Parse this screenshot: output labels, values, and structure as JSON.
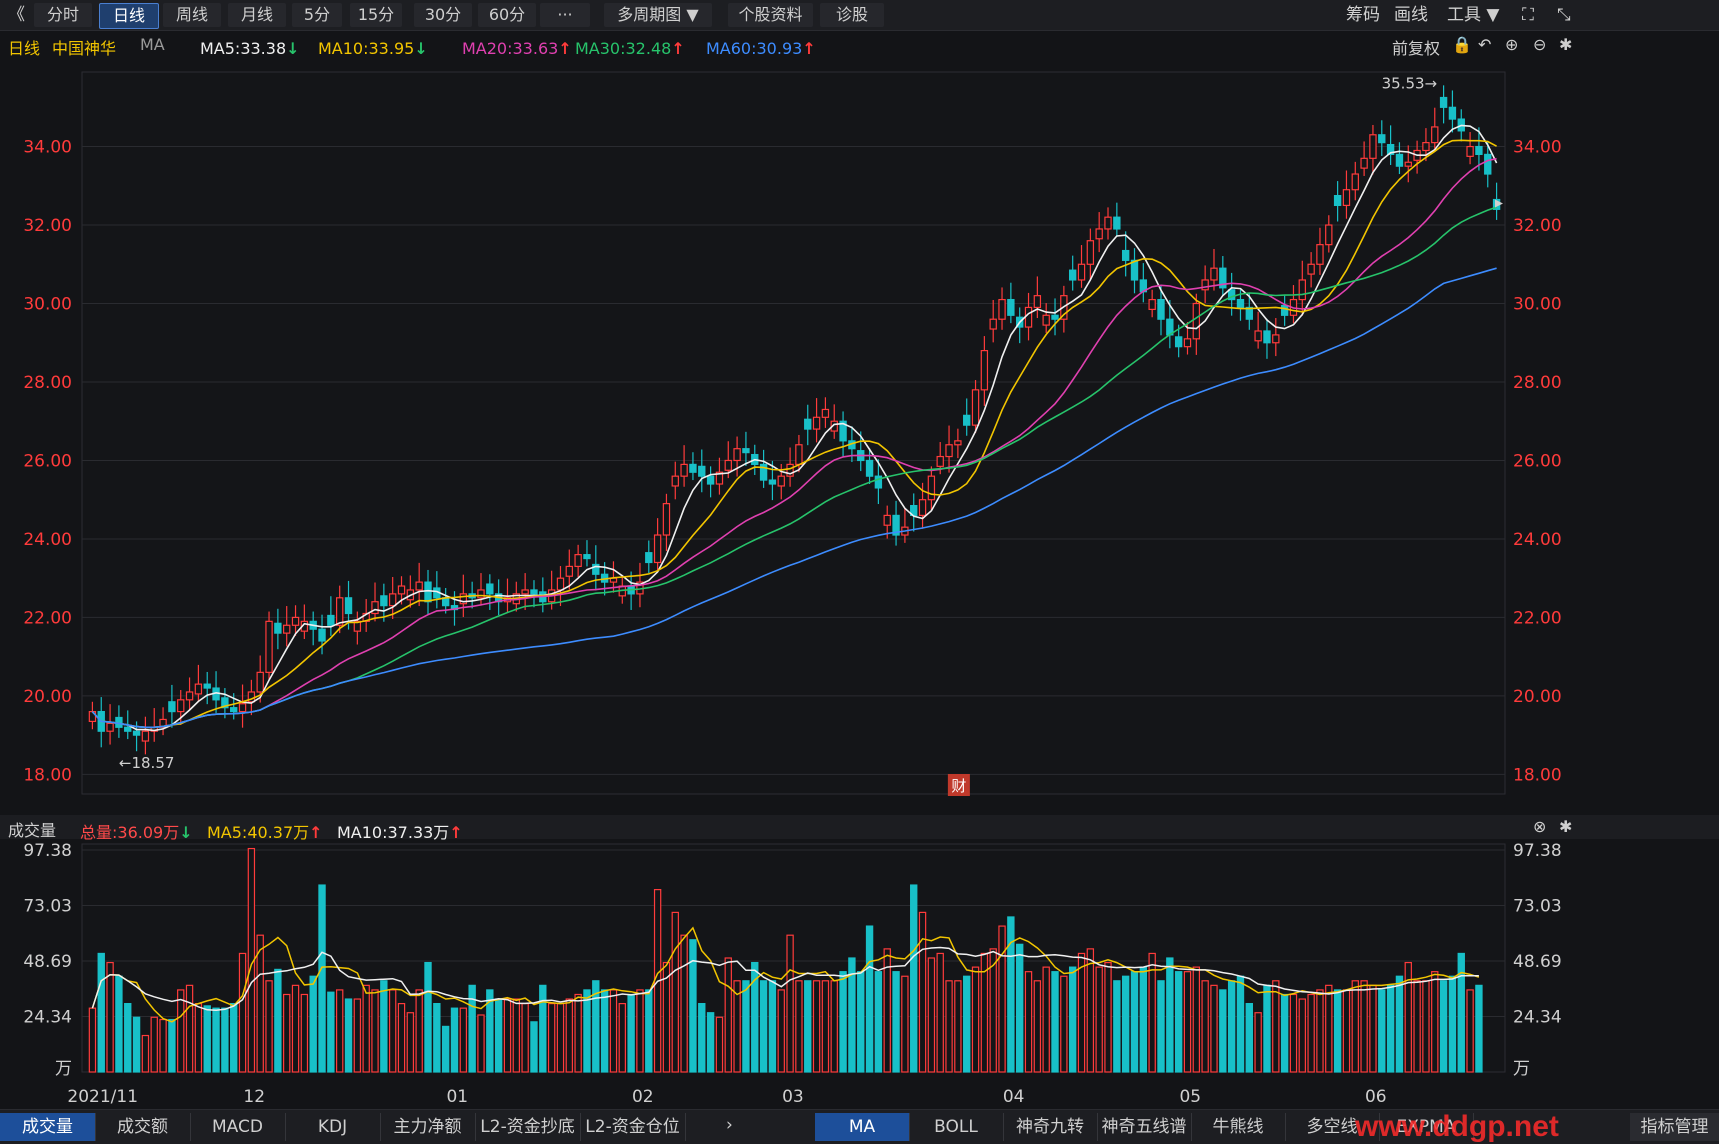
{
  "toolbar": {
    "back": "《",
    "tabs": [
      "分时",
      "日线",
      "周线",
      "月线",
      "5分",
      "15分",
      "30分",
      "60分",
      "···",
      "多周期图 ▼",
      "个股资料",
      "诊股"
    ],
    "right": [
      "筹码",
      "画线",
      "工具 ▼"
    ]
  },
  "ma_bar": {
    "period": "日线",
    "stock": "中国神华",
    "indicator": "MA",
    "items": [
      {
        "label": "MA5:33.38",
        "arrow": "↓",
        "color": "#f0f0f0"
      },
      {
        "label": "MA10:33.95",
        "arrow": "↓",
        "color": "#f2c500"
      },
      {
        "label": "MA20:33.63",
        "arrow": "↑",
        "color": "#e040b0"
      },
      {
        "label": "MA30:32.48",
        "arrow": "↑",
        "color": "#27c36b"
      },
      {
        "label": "MA60:30.93",
        "arrow": "↑",
        "color": "#3d8cff"
      }
    ],
    "fq": "前复权"
  },
  "volume_bar": {
    "title": "成交量",
    "items": [
      {
        "label": "总量:36.09万",
        "arrow": "↓",
        "color": "#ff4a4a"
      },
      {
        "label": "MA5:40.37万",
        "arrow": "↑",
        "color": "#f2c500"
      },
      {
        "label": "MA10:37.33万",
        "arrow": "↑",
        "color": "#f0f0f0"
      }
    ]
  },
  "bottom_tabs_left": [
    "成交量",
    "成交额",
    "MACD",
    "KDJ",
    "主力净额",
    "L2-资金抄底",
    "L2-资金仓位"
  ],
  "bottom_tabs_right": [
    "MA",
    "BOLL",
    "神奇九转",
    "神奇五线谱",
    "牛熊线",
    "多空线",
    "EXPMA"
  ],
  "bottom_right_label": "指标管理",
  "watermark": "www.ddgp.net",
  "caibao": "财",
  "colors": {
    "up": "#ff3b3b",
    "down": "#18c0c8",
    "grid": "#2a2b30",
    "axis": "#ff3b3b"
  },
  "chart_data": {
    "type": "candlestick",
    "y_ticks": [
      "34.00",
      "32.00",
      "30.00",
      "28.00",
      "26.00",
      "24.00",
      "22.00",
      "20.00",
      "18.00"
    ],
    "ylim": [
      17.5,
      35.9
    ],
    "x_labels": [
      {
        "label": "2021/11",
        "index": 0
      },
      {
        "label": "12",
        "index": 18
      },
      {
        "label": "01",
        "index": 41
      },
      {
        "label": "02",
        "index": 62
      },
      {
        "label": "03",
        "index": 79
      },
      {
        "label": "04",
        "index": 104
      },
      {
        "label": "05",
        "index": 124
      },
      {
        "label": "06",
        "index": 145
      }
    ],
    "max_label": "35.53→",
    "min_label": "←18.57",
    "high": 35.53,
    "low": 18.57,
    "vol_ticks": [
      "97.38",
      "73.03",
      "48.69",
      "24.34",
      "万"
    ],
    "vol_max": 100,
    "closes": [
      19.6,
      19.1,
      19.3,
      19.2,
      19.1,
      19.0,
      19.1,
      19.2,
      19.4,
      19.6,
      19.9,
      20.1,
      20.3,
      20.2,
      19.9,
      19.7,
      19.6,
      19.8,
      20.1,
      20.6,
      21.9,
      21.6,
      21.8,
      22.0,
      21.9,
      21.7,
      21.4,
      21.8,
      22.5,
      22.1,
      21.9,
      22.1,
      22.4,
      22.3,
      22.6,
      22.8,
      22.7,
      22.9,
      22.4,
      22.5,
      22.3,
      22.2,
      22.6,
      22.5,
      22.7,
      22.6,
      22.4,
      22.5,
      22.6,
      22.7,
      22.6,
      22.4,
      22.7,
      23.0,
      23.3,
      23.6,
      23.5,
      23.1,
      22.9,
      23.0,
      22.8,
      22.6,
      22.9,
      23.4,
      24.1,
      24.9,
      25.6,
      25.9,
      25.7,
      25.6,
      25.4,
      25.7,
      26.0,
      26.3,
      26.2,
      25.9,
      25.5,
      25.4,
      25.6,
      25.9,
      26.4,
      26.8,
      27.1,
      27.3,
      27.0,
      26.5,
      26.3,
      26.0,
      25.6,
      25.3,
      24.6,
      24.1,
      24.3,
      24.6,
      25.0,
      25.6,
      26.1,
      26.4,
      26.5,
      26.9,
      27.8,
      28.8,
      29.6,
      30.1,
      29.7,
      29.4,
      29.9,
      30.2,
      29.7,
      29.6,
      30.2,
      30.6,
      31.0,
      31.6,
      31.9,
      32.2,
      31.9,
      31.1,
      30.6,
      30.3,
      30.1,
      29.6,
      29.2,
      28.9,
      29.1,
      30.0,
      30.6,
      30.9,
      30.4,
      30.1,
      29.9,
      29.6,
      29.3,
      29.0,
      29.2,
      29.7,
      30.1,
      30.6,
      31.0,
      31.5,
      32.0,
      32.5,
      32.9,
      33.3,
      33.7,
      34.3,
      34.1,
      33.8,
      33.5,
      33.6,
      33.9,
      34.1,
      34.5,
      35.0,
      34.7,
      34.4,
      34.0,
      33.8,
      33.3,
      32.4
    ],
    "volumes": [
      28,
      52,
      48,
      42,
      30,
      24,
      16,
      24,
      23,
      23,
      36,
      38,
      30,
      29,
      28,
      28,
      30,
      52,
      98,
      60,
      40,
      45,
      34,
      38,
      34,
      42,
      82,
      35,
      36,
      32,
      32,
      38,
      36,
      40,
      36,
      30,
      26,
      36,
      48,
      30,
      20,
      28,
      28,
      38,
      25,
      36,
      32,
      32,
      32,
      30,
      22,
      38,
      30,
      30,
      32,
      34,
      36,
      40,
      36,
      36,
      30,
      34,
      36,
      36,
      80,
      48,
      70,
      60,
      58,
      30,
      26,
      24,
      50,
      40,
      40,
      48,
      40,
      40,
      36,
      60,
      40,
      40,
      40,
      40,
      40,
      44,
      50,
      44,
      64,
      44,
      54,
      44,
      42,
      82,
      70,
      50,
      52,
      40,
      40,
      42,
      46,
      52,
      54,
      64,
      68,
      56,
      44,
      40,
      46,
      44,
      42,
      46,
      52,
      54,
      46,
      48,
      40,
      42,
      44,
      46,
      52,
      40,
      50,
      44,
      44,
      46,
      40,
      38,
      36,
      40,
      42,
      30,
      26,
      38,
      40,
      34,
      34,
      32,
      34,
      36,
      38,
      36,
      36,
      40,
      40,
      38,
      36,
      38,
      42,
      48,
      40,
      40,
      44,
      40,
      42,
      52,
      36,
      38
    ]
  }
}
